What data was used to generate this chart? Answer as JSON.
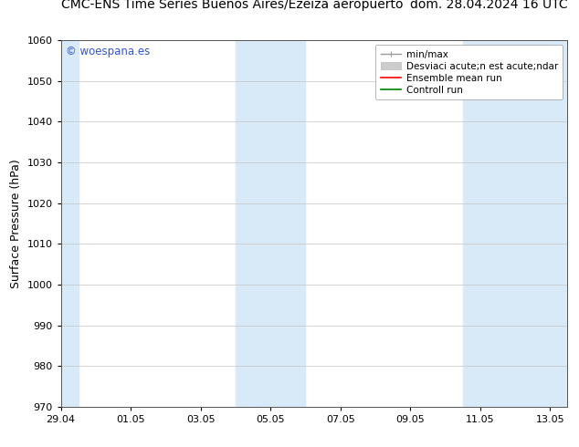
{
  "title_left": "CMC-ENS Time Series Buenos Aires/Ezeiza aeropuerto",
  "title_right": "dom. 28.04.2024 16 UTC",
  "ylabel": "Surface Pressure (hPa)",
  "ylim": [
    970,
    1060
  ],
  "yticks": [
    970,
    980,
    990,
    1000,
    1010,
    1020,
    1030,
    1040,
    1050,
    1060
  ],
  "xtick_labels": [
    "29.04",
    "01.05",
    "03.05",
    "05.05",
    "07.05",
    "09.05",
    "11.05",
    "13.05"
  ],
  "xtick_positions": [
    0,
    2,
    4,
    6,
    8,
    10,
    12,
    14
  ],
  "xlim": [
    0,
    14.5
  ],
  "shaded_regions": [
    {
      "xstart": -0.5,
      "xend": 0.5
    },
    {
      "xstart": 5.0,
      "xend": 7.0
    },
    {
      "xstart": 11.5,
      "xend": 14.5
    }
  ],
  "shaded_color": "#d8eaf8",
  "watermark_text": "© woespana.es",
  "watermark_color": "#3355cc",
  "bg_color": "#ffffff",
  "plot_bg_color": "#ffffff",
  "grid_color": "#cccccc",
  "title_fontsize": 10,
  "axis_fontsize": 9,
  "tick_fontsize": 8,
  "legend_fontsize": 7.5
}
